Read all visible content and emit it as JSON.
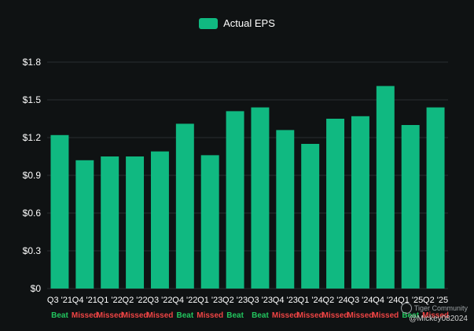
{
  "chart_data": {
    "type": "bar",
    "categories": [
      "Q3 '21",
      "Q4 '21",
      "Q1 '22",
      "Q2 '22",
      "Q3 '22",
      "Q4 '22",
      "Q1 '23",
      "Q2 '23",
      "Q3 '23",
      "Q4 '23",
      "Q1 '24",
      "Q2 '24",
      "Q3 '24",
      "Q4 '24",
      "Q1 '25",
      "Q2 '25"
    ],
    "series": [
      {
        "name": "Actual EPS",
        "values": [
          1.22,
          1.02,
          1.05,
          1.05,
          1.09,
          1.31,
          1.06,
          1.41,
          1.44,
          1.26,
          1.15,
          1.35,
          1.37,
          1.61,
          1.3,
          1.44
        ]
      }
    ],
    "results": [
      "Beat",
      "Missed",
      "Missed",
      "Missed",
      "Missed",
      "Beat",
      "Missed",
      "Beat",
      "Beat",
      "Missed",
      "Missed",
      "Missed",
      "Missed",
      "Missed",
      "Beat",
      "Missed"
    ],
    "ylim": [
      0,
      1.8
    ],
    "yticks": [
      0,
      0.3,
      0.6,
      0.9,
      1.2,
      1.5,
      1.8
    ],
    "ytick_labels": [
      "$0",
      "$0.3",
      "$0.6",
      "$0.9",
      "$1.2",
      "$1.5",
      "$1.8"
    ],
    "grid": true,
    "legend": "top-center",
    "title": "",
    "xlabel": "",
    "ylabel": ""
  },
  "colors": {
    "bar": "#10b981",
    "beat": "#22c55e",
    "missed": "#ef4444",
    "grid": "#2a2e30",
    "text": "#ffffff"
  },
  "watermark": {
    "brand": "Tiger Community",
    "handle": "@Mickey082024"
  }
}
